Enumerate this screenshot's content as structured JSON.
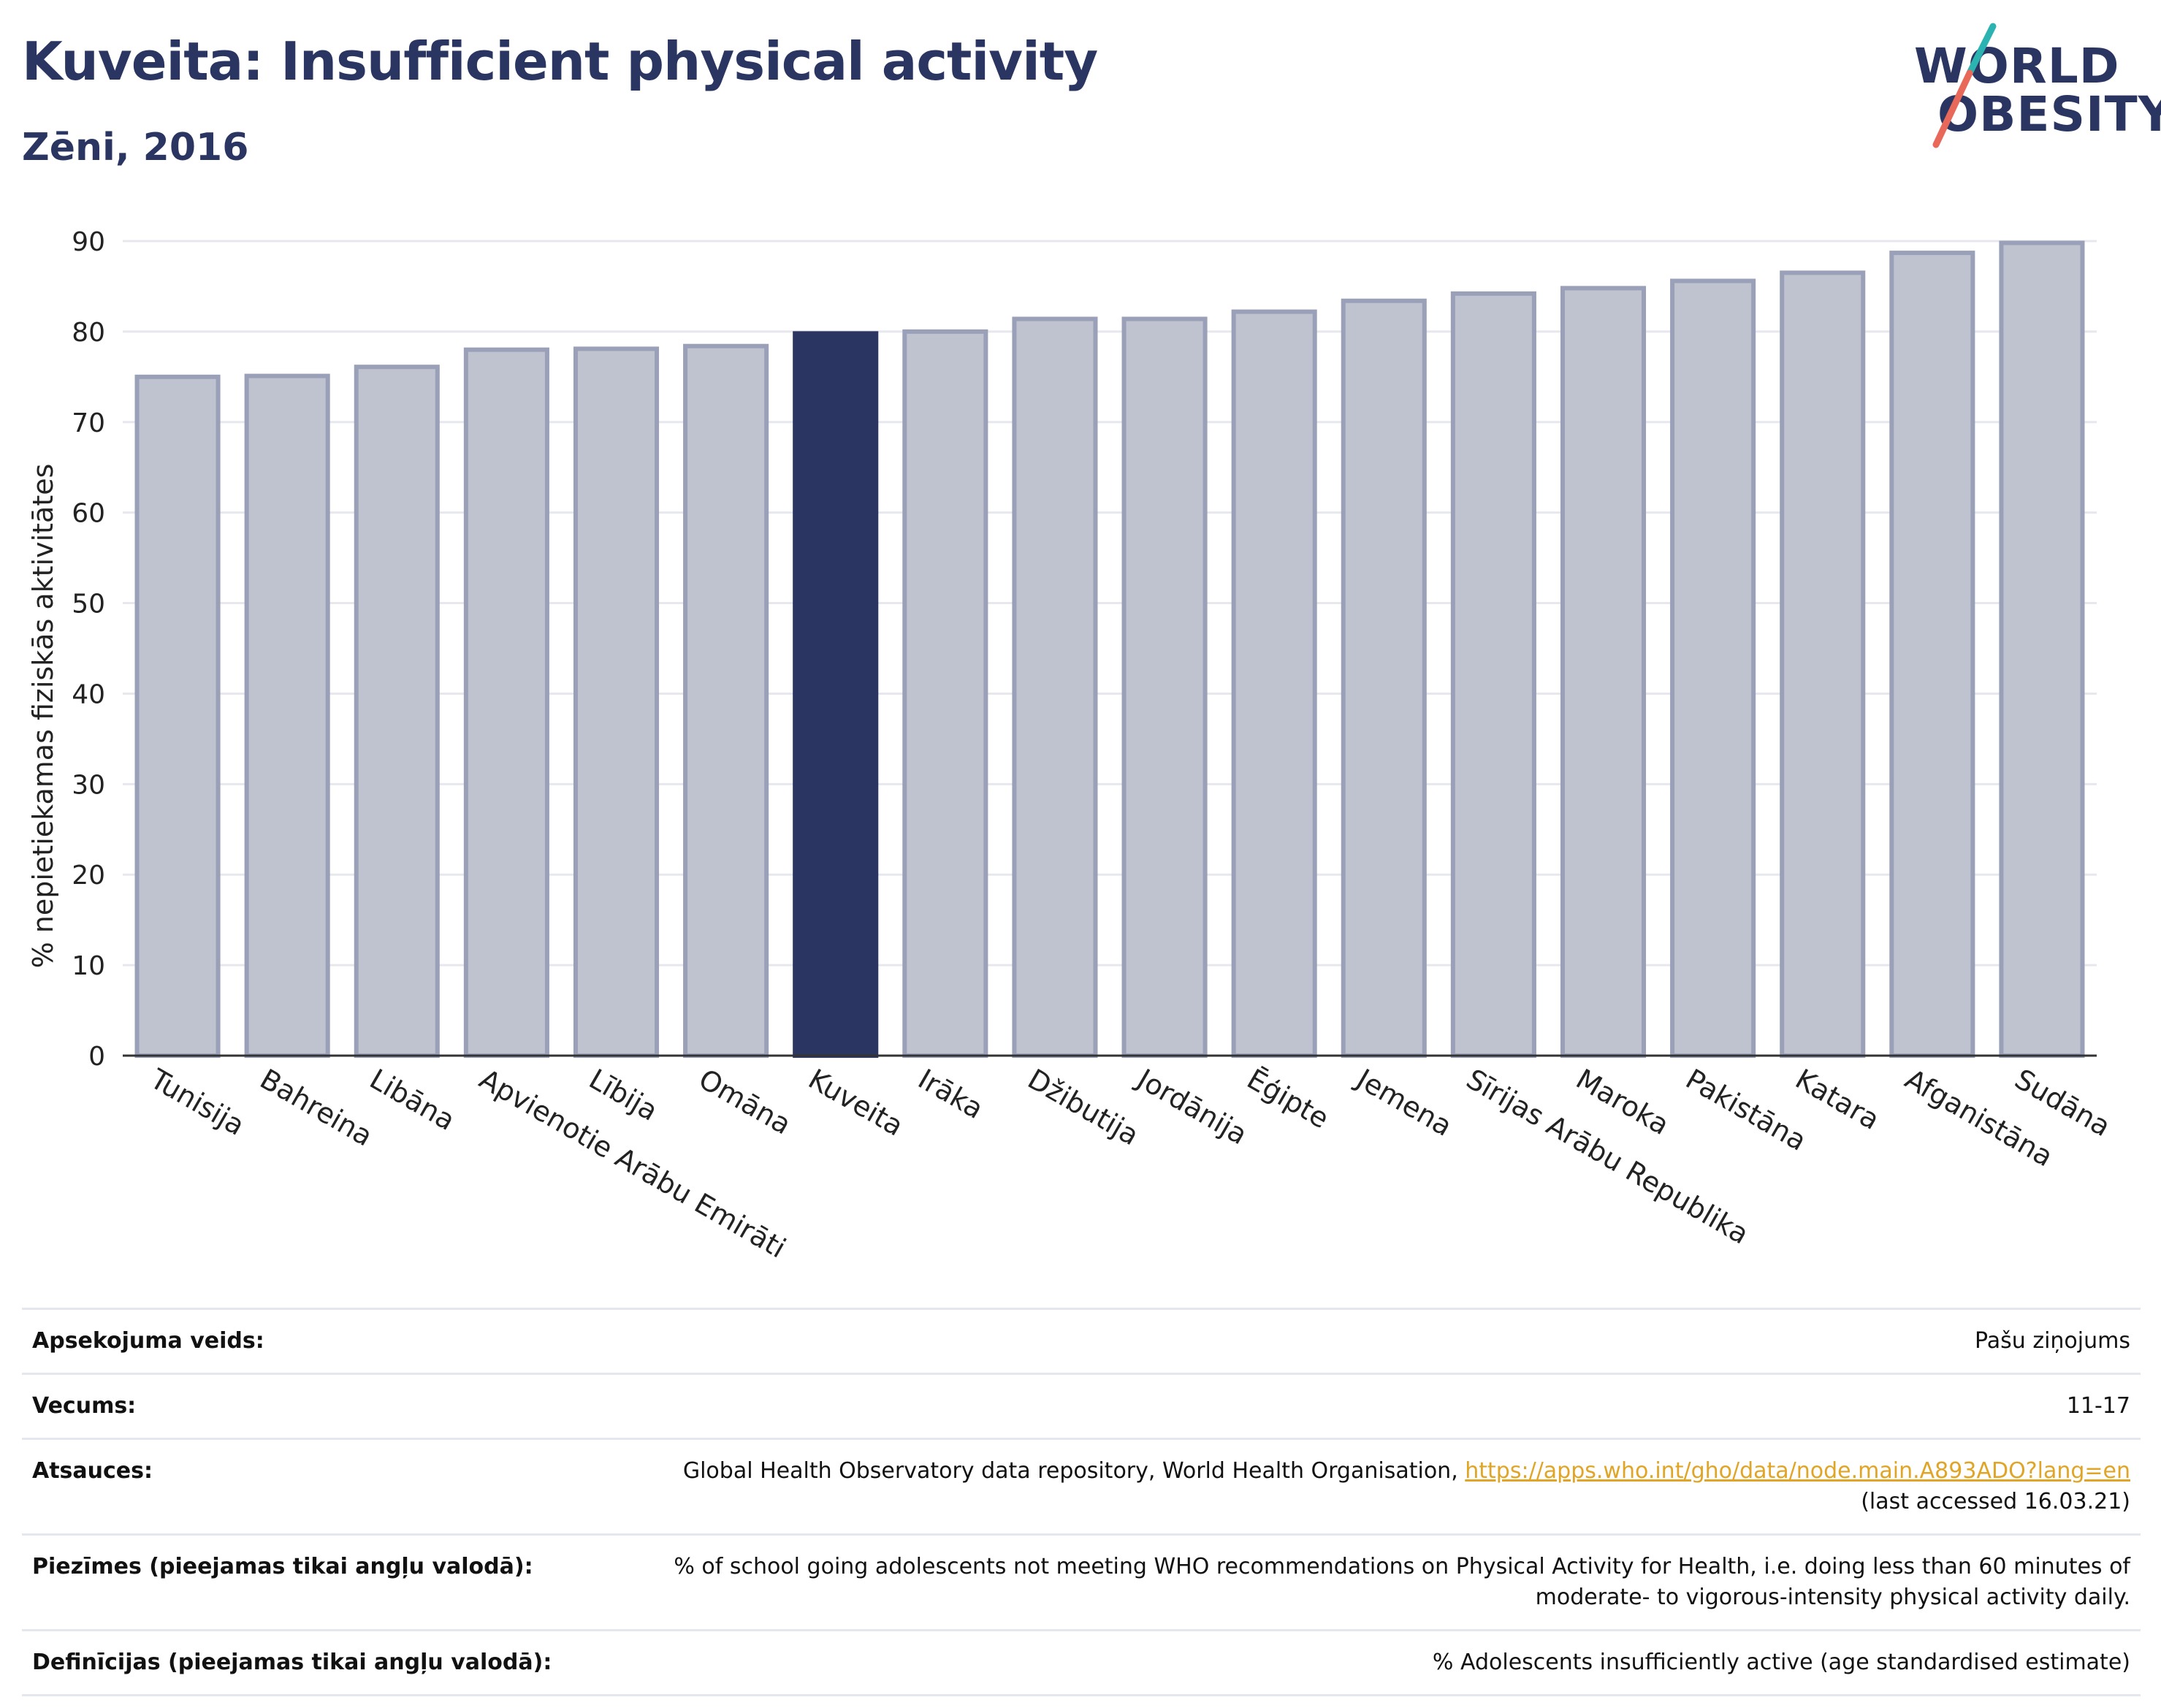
{
  "header": {
    "title": "Kuveita: Insufficient physical activity",
    "subtitle": "Zēni, 2016"
  },
  "logo": {
    "line1": "WORLD",
    "line2": "OBESITY",
    "slash_color_top": "#2ab3b0",
    "slash_color_bottom": "#e8685a"
  },
  "colors": {
    "highlight_bar": "#2a3561",
    "other_bar_fill": "#bfc2cf",
    "other_bar_stroke": "#9aa0b8",
    "grid": "#e6e8ee"
  },
  "chart_data": {
    "type": "bar",
    "title": "Kuveita: Insufficient physical activity",
    "subtitle": "Zēni, 2016",
    "xlabel": "",
    "ylabel": "% nepietiekamas fiziskās aktivitātes",
    "ylim": [
      0,
      90
    ],
    "yticks": [
      0,
      10,
      20,
      30,
      40,
      50,
      60,
      70,
      80,
      90
    ],
    "grid": true,
    "highlight": "Kuveita",
    "categories": [
      "Tunisija",
      "Bahreina",
      "Libāna",
      "Apvienotie Arābu Emirāti",
      "Lībija",
      "Omāna",
      "Kuveita",
      "Irāka",
      "Džibutija",
      "Jordānija",
      "Ēģipte",
      "Jemena",
      "Sīrijas Arābu Republika",
      "Maroka",
      "Pakistāna",
      "Katara",
      "Afganistāna",
      "Sudāna"
    ],
    "values": [
      75.0,
      75.1,
      76.1,
      78.0,
      78.1,
      78.4,
      79.8,
      80.0,
      81.4,
      81.4,
      82.2,
      83.4,
      84.2,
      84.8,
      85.6,
      86.5,
      88.7,
      89.8
    ]
  },
  "info": {
    "rows": [
      {
        "key": "Apsekojuma veids:",
        "value": "Pašu ziņojums"
      },
      {
        "key": "Vecums:",
        "value": "11-17"
      },
      {
        "key": "Atsauces:",
        "value": "Global Health Observatory data repository, World Health Organisation, ",
        "link": "https://apps.who.int/gho/data/node.main.A893ADO?lang=en",
        "value2": "(last accessed 16.03.21)"
      },
      {
        "key": "Piezīmes (pieejamas tikai angļu valodā):",
        "value": "% of school going adolescents not meeting WHO recommendations on Physical Activity for Health, i.e. doing less than 60 minutes of",
        "value2": "moderate- to vigorous-intensity physical activity daily."
      },
      {
        "key": "Definīcijas (pieejamas tikai angļu valodā):",
        "value": "% Adolescents insufficiently active (age standardised estimate)"
      }
    ]
  }
}
